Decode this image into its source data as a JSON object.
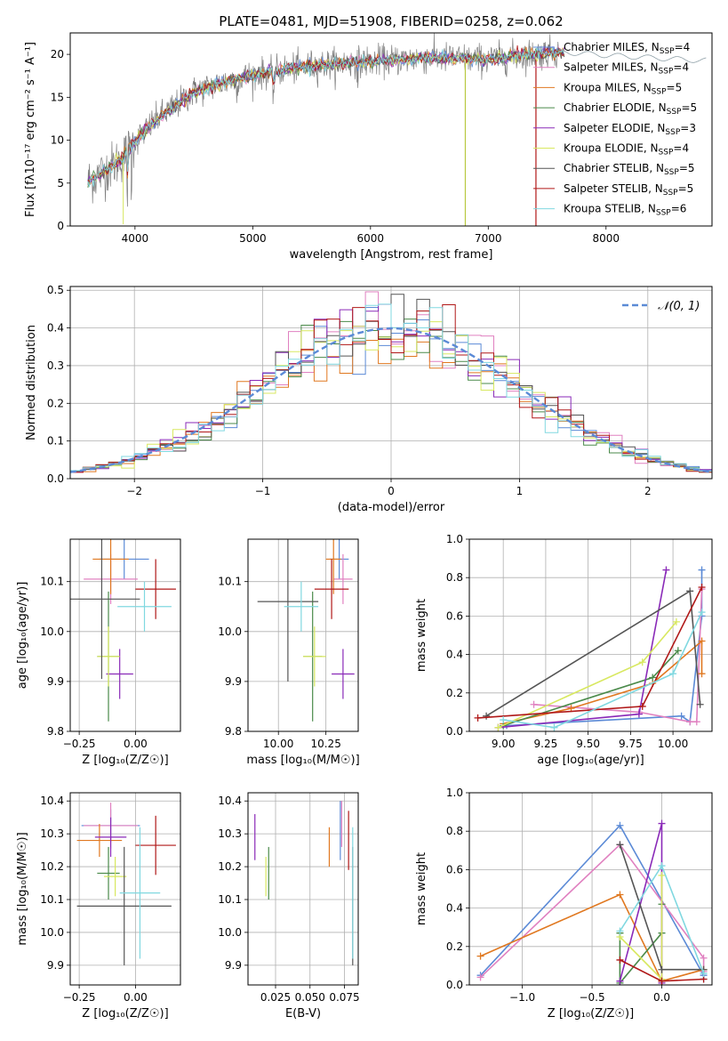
{
  "figure": {
    "title": "PLATE=0481, MJD=51908, FIBERID=0258, z=0.062"
  },
  "models": [
    {
      "name": "Chabrier MILES",
      "nssp": "4",
      "color": "#5b8ad6"
    },
    {
      "name": "Salpeter MILES",
      "nssp": "4",
      "color": "#e080c0"
    },
    {
      "name": "Kroupa MILES",
      "nssp": "5",
      "color": "#e07820"
    },
    {
      "name": "Chabrier ELODIE",
      "nssp": "5",
      "color": "#4a8a4a"
    },
    {
      "name": "Salpeter ELODIE",
      "nssp": "3",
      "color": "#8a2ab8"
    },
    {
      "name": "Kroupa ELODIE",
      "nssp": "4",
      "color": "#d8e860"
    },
    {
      "name": "Chabrier STELIB",
      "nssp": "5",
      "color": "#555555"
    },
    {
      "name": "Salpeter STELIB",
      "nssp": "5",
      "color": "#b01818"
    },
    {
      "name": "Kroupa STELIB",
      "nssp": "6",
      "color": "#80d8e0"
    }
  ],
  "chart_data": [
    {
      "id": "spectrum",
      "type": "line",
      "xlabel": "wavelength [Angstrom, rest frame]",
      "ylabel": "Flux [fλ10⁻¹⁷ erg cm⁻² s⁻¹ A⁻¹]",
      "xlim": [
        3450,
        8900
      ],
      "ylim": [
        0,
        22.5
      ],
      "xticks": [
        4000,
        5000,
        6000,
        7000,
        8000
      ],
      "yticks": [
        0,
        5,
        10,
        15,
        20
      ],
      "continuum": {
        "x": [
          3600,
          3700,
          3800,
          3900,
          4000,
          4100,
          4200,
          4300,
          4400,
          4500,
          4700,
          5000,
          5300,
          5600,
          6000,
          6500,
          7000,
          7300,
          7600,
          8000,
          8400,
          8800
        ],
        "y": [
          5.2,
          6.0,
          7.0,
          8.0,
          9.8,
          11.3,
          12.6,
          13.6,
          14.6,
          15.6,
          16.5,
          17.6,
          18.3,
          18.8,
          19.2,
          19.6,
          19.4,
          19.9,
          20.3,
          19.9,
          19.6,
          19.3
        ]
      }
    },
    {
      "id": "residuals",
      "type": "bar",
      "xlabel": "(data-model)/error",
      "ylabel": "Normed distribution",
      "xlim": [
        -2.5,
        2.5
      ],
      "ylim": [
        0,
        0.51
      ],
      "xticks": [
        -2,
        -1,
        0,
        1,
        2
      ],
      "yticks": [
        0.0,
        0.1,
        0.2,
        0.3,
        0.4,
        0.5
      ],
      "legend": "𝒩(0, 1)",
      "gauss_mean": 0,
      "gauss_sigma": 1,
      "bin_width": 0.1
    },
    {
      "id": "age-vs-Z",
      "type": "scatter",
      "xlabel": "Z [log₁₀(Z/Z☉)]",
      "ylabel": "age  [log₁₀(age/yr)]",
      "xlim": [
        -0.29,
        0.2
      ],
      "ylim": [
        9.8,
        10.185
      ],
      "xticks": [
        -0.25,
        0.0
      ],
      "yticks": [
        9.8,
        9.9,
        10.0,
        10.1
      ],
      "points": [
        {
          "x": -0.05,
          "y": 10.145,
          "xerr": 0.11,
          "yerr": 0.04
        },
        {
          "x": -0.11,
          "y": 10.105,
          "xerr": 0.12,
          "yerr": 0.05
        },
        {
          "x": -0.11,
          "y": 10.145,
          "xerr": 0.08,
          "yerr": 0.07
        },
        {
          "x": -0.12,
          "y": 9.95,
          "xerr": 0.05,
          "yerr": 0.13
        },
        {
          "x": -0.07,
          "y": 9.915,
          "xerr": 0.06,
          "yerr": 0.05
        },
        {
          "x": -0.12,
          "y": 9.95,
          "xerr": 0.05,
          "yerr": 0.06
        },
        {
          "x": -0.15,
          "y": 10.065,
          "xerr": 0.17,
          "yerr": 0.16
        },
        {
          "x": 0.09,
          "y": 10.085,
          "xerr": 0.09,
          "yerr": 0.06
        },
        {
          "x": 0.04,
          "y": 10.05,
          "xerr": 0.12,
          "yerr": 0.05
        }
      ]
    },
    {
      "id": "age-vs-mass",
      "type": "scatter",
      "xlabel": "mass [log₁₀(M/M☉)]",
      "ylabel": "",
      "xlim": [
        9.84,
        10.42
      ],
      "ylim": [
        9.8,
        10.185
      ],
      "xticks": [
        10.0,
        10.25
      ],
      "yticks": [
        9.8,
        9.9,
        10.0,
        10.1
      ],
      "points": [
        {
          "x": 10.32,
          "y": 10.145,
          "xerr": 0.05,
          "yerr": 0.04
        },
        {
          "x": 10.34,
          "y": 10.105,
          "xerr": 0.05,
          "yerr": 0.05
        },
        {
          "x": 10.29,
          "y": 10.145,
          "xerr": 0.04,
          "yerr": 0.07
        },
        {
          "x": 10.18,
          "y": 9.95,
          "xerr": 0.05,
          "yerr": 0.13
        },
        {
          "x": 10.34,
          "y": 9.915,
          "xerr": 0.06,
          "yerr": 0.05
        },
        {
          "x": 10.19,
          "y": 9.95,
          "xerr": 0.06,
          "yerr": 0.06
        },
        {
          "x": 10.05,
          "y": 10.06,
          "xerr": 0.16,
          "yerr": 0.16
        },
        {
          "x": 10.28,
          "y": 10.085,
          "xerr": 0.09,
          "yerr": 0.06
        },
        {
          "x": 10.12,
          "y": 10.05,
          "xerr": 0.09,
          "yerr": 0.05
        }
      ]
    },
    {
      "id": "massweight-vs-age",
      "type": "line",
      "xlabel": "age  [log₁₀(age/yr)]",
      "ylabel": "mass weight",
      "xlim": [
        8.8,
        10.23
      ],
      "ylim": [
        0,
        1.0
      ],
      "xticks": [
        9.0,
        9.25,
        9.5,
        9.75,
        10.0
      ],
      "yticks": [
        0.0,
        0.2,
        0.4,
        0.6,
        0.8,
        1.0
      ],
      "series": [
        {
          "x": [
            9.02,
            10.05,
            10.1,
            10.17,
            10.17
          ],
          "y": [
            0.03,
            0.08,
            0.05,
            0.6,
            0.84
          ]
        },
        {
          "x": [
            9.18,
            9.8,
            10.1,
            10.14,
            10.17
          ],
          "y": [
            0.14,
            0.1,
            0.05,
            0.05,
            0.74
          ]
        },
        {
          "x": [
            9.0,
            9.4,
            9.88,
            10.17,
            10.17
          ],
          "y": [
            0.04,
            0.12,
            0.25,
            0.47,
            0.3
          ]
        },
        {
          "x": [
            9.0,
            9.88,
            10.03
          ],
          "y": [
            0.03,
            0.28,
            0.42
          ]
        },
        {
          "x": [
            8.97,
            9.8,
            9.96
          ],
          "y": [
            0.02,
            0.09,
            0.84
          ]
        },
        {
          "x": [
            8.97,
            9.82,
            10.02
          ],
          "y": [
            0.02,
            0.36,
            0.57
          ]
        },
        {
          "x": [
            8.9,
            10.1,
            10.16
          ],
          "y": [
            0.08,
            0.73,
            0.14
          ]
        },
        {
          "x": [
            8.85,
            9.82,
            10.17
          ],
          "y": [
            0.07,
            0.13,
            0.75
          ]
        },
        {
          "x": [
            9.0,
            9.3,
            10.0,
            10.17
          ],
          "y": [
            0.06,
            0.02,
            0.3,
            0.62
          ]
        }
      ]
    },
    {
      "id": "mass-vs-Z",
      "type": "scatter",
      "xlabel": "Z [log₁₀(Z/Z☉)]",
      "ylabel": "mass [log₁₀(M/M☉)]",
      "xlim": [
        -0.29,
        0.2
      ],
      "ylim": [
        9.84,
        10.425
      ],
      "xticks": [
        -0.25,
        0.0
      ],
      "yticks": [
        9.9,
        10.0,
        10.1,
        10.2,
        10.3,
        10.4
      ],
      "points": [
        {
          "x": -0.11,
          "y": 10.325,
          "xerr": 0.13,
          "yerr": 0.05
        },
        {
          "x": -0.11,
          "y": 10.325,
          "xerr": 0.12,
          "yerr": 0.07
        },
        {
          "x": -0.16,
          "y": 10.28,
          "xerr": 0.1,
          "yerr": 0.05
        },
        {
          "x": -0.12,
          "y": 10.18,
          "xerr": 0.05,
          "yerr": 0.08
        },
        {
          "x": -0.11,
          "y": 10.29,
          "xerr": 0.07,
          "yerr": 0.06
        },
        {
          "x": -0.09,
          "y": 10.17,
          "xerr": 0.05,
          "yerr": 0.06
        },
        {
          "x": -0.05,
          "y": 10.08,
          "xerr": 0.21,
          "yerr": 0.18
        },
        {
          "x": 0.09,
          "y": 10.265,
          "xerr": 0.09,
          "yerr": 0.09
        },
        {
          "x": 0.02,
          "y": 10.12,
          "xerr": 0.09,
          "yerr": 0.2
        }
      ]
    },
    {
      "id": "mass-vs-EBV",
      "type": "scatter",
      "xlabel": "E(B-V)",
      "ylabel": "",
      "xlim": [
        0.005,
        0.085
      ],
      "ylim": [
        9.84,
        10.425
      ],
      "xticks": [
        0.025,
        0.05,
        0.075
      ],
      "yticks": [
        9.9,
        10.0,
        10.1,
        10.2,
        10.3,
        10.4
      ],
      "points": [
        {
          "x": 0.072,
          "y": 10.31,
          "xerr": 0,
          "yerr": 0.09
        },
        {
          "x": 0.073,
          "y": 10.33,
          "xerr": 0,
          "yerr": 0.07
        },
        {
          "x": 0.064,
          "y": 10.26,
          "xerr": 0,
          "yerr": 0.06
        },
        {
          "x": 0.02,
          "y": 10.18,
          "xerr": 0,
          "yerr": 0.08
        },
        {
          "x": 0.01,
          "y": 10.29,
          "xerr": 0,
          "yerr": 0.07
        },
        {
          "x": 0.018,
          "y": 10.17,
          "xerr": 0,
          "yerr": 0.06
        },
        {
          "x": 0.081,
          "y": 10.08,
          "xerr": 0,
          "yerr": 0.18
        },
        {
          "x": 0.078,
          "y": 10.28,
          "xerr": 0,
          "yerr": 0.09
        },
        {
          "x": 0.081,
          "y": 10.12,
          "xerr": 0,
          "yerr": 0.2
        }
      ]
    },
    {
      "id": "massweight-vs-Z",
      "type": "line",
      "xlabel": "Z [log₁₀(Z/Z☉)]",
      "ylabel": "mass weight",
      "xlim": [
        -1.38,
        0.36
      ],
      "ylim": [
        0,
        1.0
      ],
      "xticks": [
        -1.0,
        -0.5,
        0.0
      ],
      "yticks": [
        0.0,
        0.2,
        0.4,
        0.6,
        0.8,
        1.0
      ],
      "series": [
        {
          "x": [
            -1.3,
            -0.3,
            0.3,
            0.3
          ],
          "y": [
            0.05,
            0.83,
            0.05,
            0.03
          ]
        },
        {
          "x": [
            -1.3,
            -0.3,
            0.3,
            0.3
          ],
          "y": [
            0.04,
            0.73,
            0.14,
            0.07
          ]
        },
        {
          "x": [
            -1.3,
            -0.3,
            0.0,
            0.3
          ],
          "y": [
            0.15,
            0.47,
            0.02,
            0.08
          ]
        },
        {
          "x": [
            -0.3,
            -0.3,
            0.0,
            0.0
          ],
          "y": [
            0.27,
            0.01,
            0.27,
            0.42
          ]
        },
        {
          "x": [
            -0.3,
            0.0,
            0.0
          ],
          "y": [
            0.02,
            0.84,
            0.01
          ]
        },
        {
          "x": [
            -0.3,
            0.0,
            0.0
          ],
          "y": [
            0.25,
            0.03,
            0.57
          ]
        },
        {
          "x": [
            -0.3,
            0.0,
            0.3
          ],
          "y": [
            0.73,
            0.08,
            0.08
          ]
        },
        {
          "x": [
            -0.3,
            0.0,
            0.3
          ],
          "y": [
            0.13,
            0.02,
            0.03
          ]
        },
        {
          "x": [
            -0.3,
            0.0,
            0.3
          ],
          "y": [
            0.28,
            0.62,
            0.06
          ]
        }
      ]
    }
  ]
}
